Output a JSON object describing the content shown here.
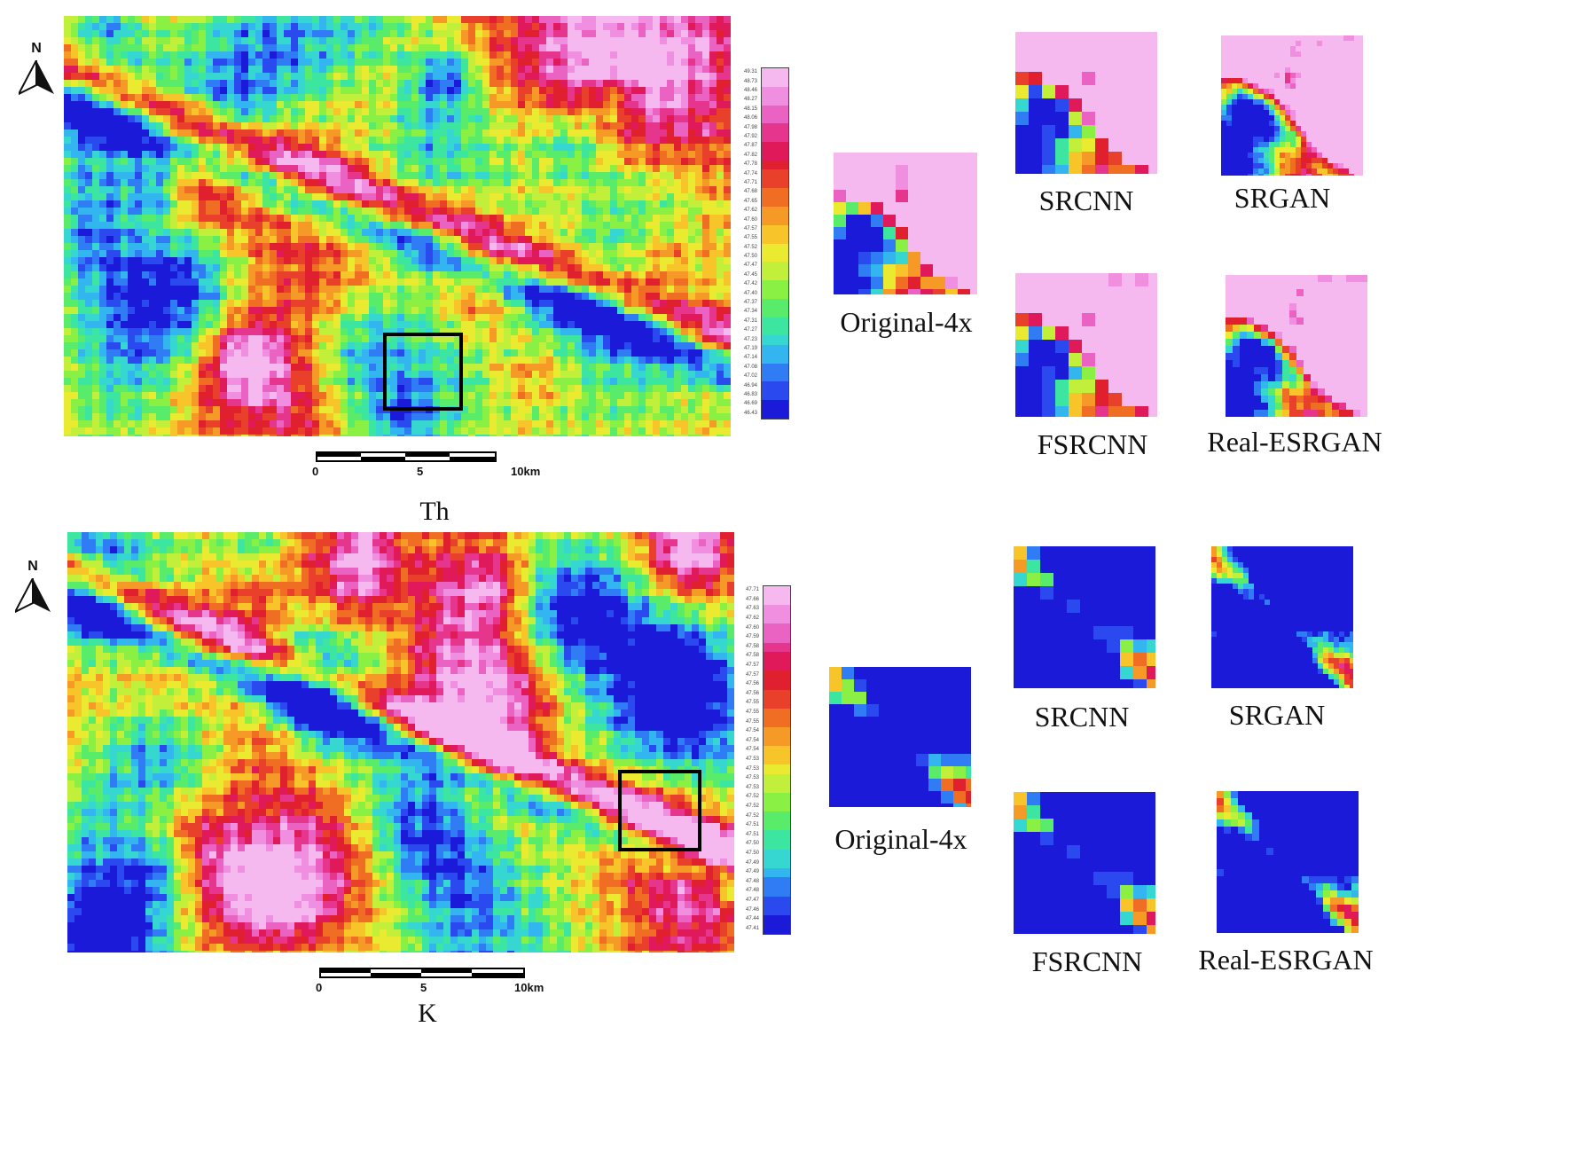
{
  "panels": [
    {
      "id": "th",
      "caption": "Th",
      "north_label": "N",
      "colorbar_labels": [
        "49.31",
        "48.73",
        "48.46",
        "48.27",
        "48.15",
        "48.06",
        "47.98",
        "47.92",
        "47.87",
        "47.82",
        "47.78",
        "47.74",
        "47.71",
        "47.68",
        "47.65",
        "47.62",
        "47.60",
        "47.57",
        "47.55",
        "47.52",
        "47.50",
        "47.47",
        "47.45",
        "47.42",
        "47.40",
        "47.37",
        "47.34",
        "47.31",
        "47.27",
        "47.23",
        "47.19",
        "47.14",
        "47.08",
        "47.02",
        "46.94",
        "46.83",
        "46.69",
        "46.43"
      ],
      "scale_labels": [
        "0",
        "5",
        "10km"
      ],
      "thumbnails": [
        "Original-4x",
        "SRCNN",
        "SRGAN",
        "FSRCNN",
        "Real-ESRGAN"
      ]
    },
    {
      "id": "k",
      "caption": "K",
      "north_label": "N",
      "colorbar_labels": [
        "47.71",
        "47.66",
        "47.63",
        "47.62",
        "47.60",
        "47.59",
        "47.58",
        "47.58",
        "47.57",
        "47.57",
        "47.56",
        "47.56",
        "47.55",
        "47.55",
        "47.55",
        "47.54",
        "47.54",
        "47.54",
        "47.53",
        "47.53",
        "47.53",
        "47.53",
        "47.52",
        "47.52",
        "47.52",
        "47.51",
        "47.51",
        "47.50",
        "47.50",
        "47.49",
        "47.49",
        "47.48",
        "47.48",
        "47.47",
        "47.46",
        "47.44",
        "47.41"
      ],
      "scale_labels": [
        "0",
        "5",
        "10km"
      ],
      "thumbnails": [
        "Original-4x",
        "SRCNN",
        "SRGAN",
        "FSRCNN",
        "Real-ESRGAN"
      ]
    }
  ],
  "colormap": [
    "#1a1ad8",
    "#2a4af0",
    "#2f7cf5",
    "#33b5f0",
    "#35d7d0",
    "#3de6a0",
    "#59ec6a",
    "#8bf044",
    "#c2f03a",
    "#eaea30",
    "#f7c52a",
    "#f59a26",
    "#f06d24",
    "#e8402a",
    "#e0202e",
    "#e01a5a",
    "#e6358c",
    "#ea62c2",
    "#f08ee0",
    "#f5b8ef"
  ]
}
